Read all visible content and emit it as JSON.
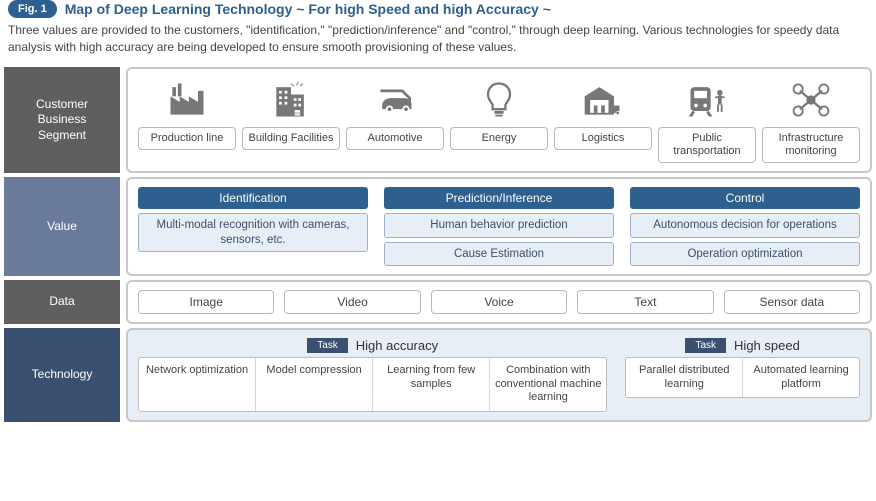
{
  "figure": {
    "badge": "Fig. 1",
    "title": "Map of Deep Learning Technology ~ For high Speed and high Accuracy ~"
  },
  "intro": "Three values are provided to the customers, \"identification,\" \"prediction/inference\" and \"control,\" through deep learning. Various technologies for speedy data analysis with high accuracy are being developed to ensure smooth provisioning of these values.",
  "colors": {
    "brand_blue": "#2d5f8f",
    "row_dark": "#5f5f5f",
    "row_midblue": "#6a7a9a",
    "row_dblue": "#3a5070",
    "box_border": "#b8b8b8",
    "value_bg": "#e8eef5",
    "value_border": "#9cb0cc",
    "icon": "#777777"
  },
  "rows": {
    "segment": {
      "label": "Customer\nBusiness\nSegment",
      "items": [
        {
          "label": "Production line",
          "icon": "factory"
        },
        {
          "label": "Building Facilities",
          "icon": "building"
        },
        {
          "label": "Automotive",
          "icon": "car"
        },
        {
          "label": "Energy",
          "icon": "bulb"
        },
        {
          "label": "Logistics",
          "icon": "warehouse"
        },
        {
          "label": "Public transportation",
          "icon": "train"
        },
        {
          "label": "Infrastructure monitoring",
          "icon": "drone"
        }
      ]
    },
    "value": {
      "label": "Value",
      "columns": [
        {
          "header": "Identification",
          "items": [
            "Multi-modal recognition with cameras, sensors, etc."
          ]
        },
        {
          "header": "Prediction/Inference",
          "items": [
            "Human behavior prediction",
            "Cause Estimation"
          ]
        },
        {
          "header": "Control",
          "items": [
            "Autonomous decision for operations",
            "Operation optimization"
          ]
        }
      ]
    },
    "data": {
      "label": "Data",
      "items": [
        "Image",
        "Video",
        "Voice",
        "Text",
        "Sensor data"
      ]
    },
    "tech": {
      "label": "Technology",
      "task_label": "Task",
      "groups": [
        {
          "title": "High accuracy",
          "items": [
            "Network optimization",
            "Model compression",
            "Learning from few samples",
            "Combination with conventional machine learning"
          ]
        },
        {
          "title": "High speed",
          "items": [
            "Parallel distributed learning",
            "Automated learning platform"
          ]
        }
      ]
    }
  }
}
